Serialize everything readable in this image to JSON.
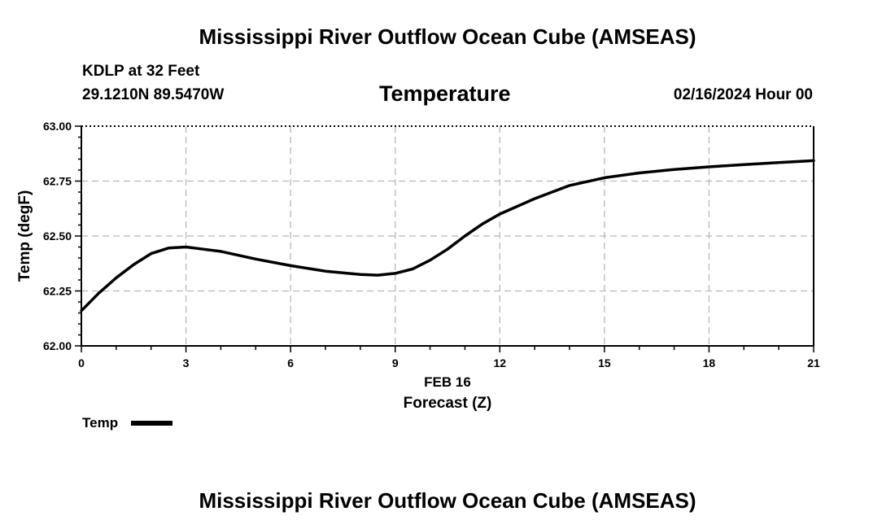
{
  "page": {
    "title_top": "Mississippi River Outflow Ocean Cube (AMSEAS)",
    "title_bottom": "Mississippi River Outflow Ocean Cube (AMSEAS)",
    "station": "KDLP at 32 Feet",
    "coords": "29.1210N  89.5470W",
    "variable": "Temperature",
    "datetime": "02/16/2024 Hour 00"
  },
  "legend": {
    "label": "Temp"
  },
  "chart_data": {
    "type": "line",
    "title": "Temperature",
    "xlabel": "Forecast (Z)",
    "xlabel_date": "FEB 16",
    "ylabel": "Temp (degF)",
    "xlim": [
      0,
      21
    ],
    "ylim": [
      62.0,
      63.0
    ],
    "x_ticks": [
      0,
      3,
      6,
      9,
      12,
      15,
      18,
      21
    ],
    "x_tick_labels": [
      "0",
      "3",
      "6",
      "9",
      "12",
      "15",
      "18",
      "21"
    ],
    "y_ticks": [
      62.0,
      62.25,
      62.5,
      62.75,
      63.0
    ],
    "y_tick_labels": [
      "62.00",
      "62.25",
      "62.50",
      "62.75",
      "63.00"
    ],
    "grid": true,
    "series": [
      {
        "name": "Temp",
        "color": "#000000",
        "x": [
          0,
          0.5,
          1,
          1.5,
          2,
          2.5,
          3,
          3.5,
          4,
          5,
          6,
          7,
          8,
          8.5,
          9,
          9.5,
          10,
          10.5,
          11,
          11.5,
          12,
          13,
          14,
          15,
          16,
          17,
          18,
          19,
          20,
          21
        ],
        "values": [
          62.16,
          62.24,
          62.31,
          62.37,
          62.42,
          62.445,
          62.45,
          62.44,
          62.43,
          62.395,
          62.365,
          62.34,
          62.325,
          62.322,
          62.33,
          62.35,
          62.39,
          62.44,
          62.5,
          62.555,
          62.6,
          62.67,
          62.73,
          62.765,
          62.787,
          62.803,
          62.815,
          62.825,
          62.834,
          62.843
        ]
      }
    ]
  }
}
